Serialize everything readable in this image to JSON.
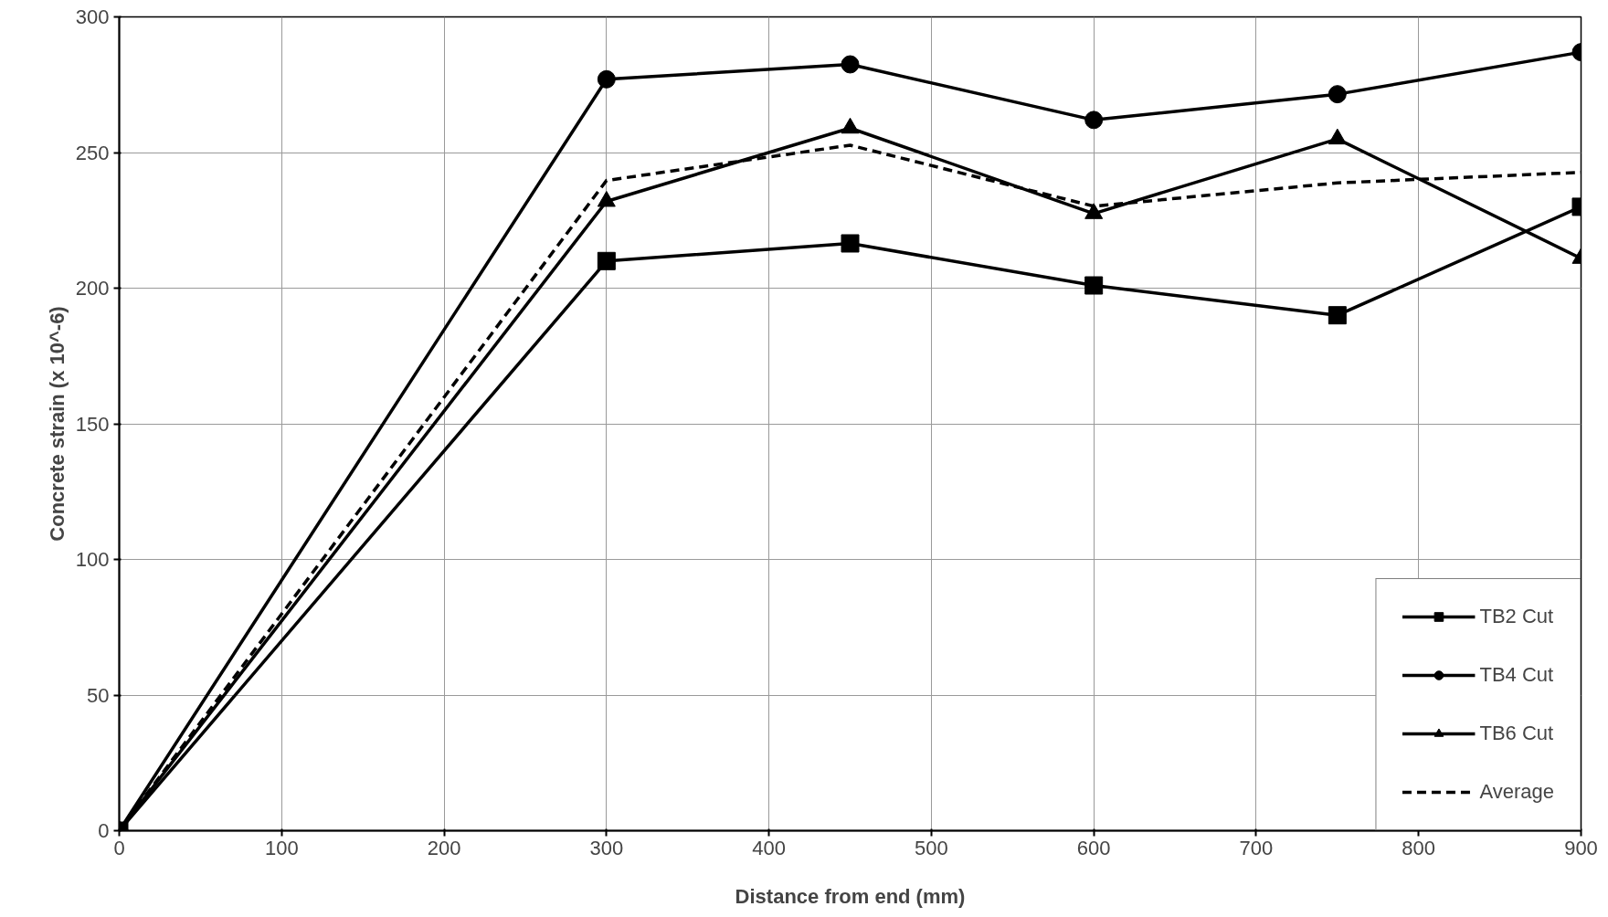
{
  "chart_data": {
    "type": "line",
    "xlabel": "Distance from end (mm)",
    "ylabel": "Concrete strain (x 10^-6)",
    "x": [
      0,
      300,
      450,
      600,
      750,
      900
    ],
    "series": [
      {
        "name": "TB2 Cut",
        "color": "#000000",
        "marker": "square",
        "line_style": "solid",
        "values": [
          0,
          210,
          216.5,
          201,
          190,
          230
        ]
      },
      {
        "name": "TB4 Cut",
        "color": "#000000",
        "marker": "circle",
        "line_style": "solid",
        "values": [
          0,
          277,
          282.5,
          262,
          271.5,
          287
        ]
      },
      {
        "name": "TB6 Cut",
        "color": "#000000",
        "marker": "triangle",
        "line_style": "solid",
        "values": [
          0,
          232,
          259,
          227.5,
          255,
          211
        ]
      },
      {
        "name": "Average",
        "color": "#000000",
        "marker": "none",
        "line_style": "dashed",
        "values": [
          0,
          239.7,
          252.7,
          230.2,
          238.8,
          242.7
        ]
      }
    ],
    "xlim": [
      0,
      900
    ],
    "xticks": [
      0,
      100,
      200,
      300,
      400,
      500,
      600,
      700,
      800,
      900
    ],
    "ylim": [
      0,
      300
    ],
    "yticks": [
      0,
      50,
      100,
      150,
      200,
      250,
      300
    ],
    "grid": true,
    "legend": "bottom right"
  }
}
